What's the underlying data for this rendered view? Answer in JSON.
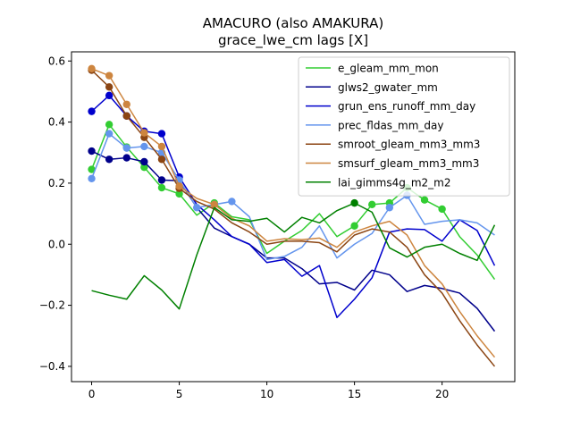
{
  "chart_data": {
    "type": "line",
    "title": "AMACURO (also AMAKURA)",
    "subtitle": "grace_lwe_cm lags [X]",
    "xlabel": "",
    "ylabel": "",
    "xlim": [
      -1.15,
      24.15
    ],
    "ylim": [
      -0.45,
      0.63
    ],
    "xticks": [
      0,
      5,
      10,
      15,
      20
    ],
    "yticks": [
      -0.4,
      -0.2,
      0.0,
      0.2,
      0.4,
      0.6
    ],
    "ytick_labels": [
      "−0.4",
      "−0.2",
      "0.0",
      "0.2",
      "0.4",
      "0.6"
    ],
    "grid": false,
    "legend_position": "top-right",
    "x": [
      0,
      1,
      2,
      3,
      4,
      5,
      6,
      7,
      8,
      9,
      10,
      11,
      12,
      13,
      14,
      15,
      16,
      17,
      18,
      19,
      20,
      21,
      22,
      23
    ],
    "series": [
      {
        "name": "e_gleam_mm_mon",
        "color": "#32cd32",
        "values": [
          0.245,
          0.392,
          0.318,
          0.252,
          0.185,
          0.165,
          0.095,
          0.135,
          0.09,
          0.08,
          -0.03,
          0.01,
          0.045,
          0.1,
          0.025,
          0.06,
          0.13,
          0.135,
          0.185,
          0.145,
          0.115,
          0.025,
          -0.035,
          -0.115
        ],
        "markers": [
          0,
          1,
          2,
          3,
          4,
          5,
          7,
          15,
          16,
          17,
          18,
          19,
          20
        ]
      },
      {
        "name": "glws2_gwater_mm",
        "color": "#00008b",
        "values": [
          0.305,
          0.278,
          0.283,
          0.27,
          0.21,
          0.208,
          0.12,
          0.053,
          0.025,
          0.0,
          -0.045,
          -0.045,
          -0.08,
          -0.13,
          -0.125,
          -0.15,
          -0.085,
          -0.1,
          -0.155,
          -0.135,
          -0.145,
          -0.16,
          -0.21,
          -0.285
        ],
        "markers": [
          0,
          1,
          2,
          3,
          4
        ]
      },
      {
        "name": "grun_ens_runoff_mm_day",
        "color": "#0000cd",
        "values": [
          0.435,
          0.487,
          0.42,
          0.37,
          0.362,
          0.22,
          0.13,
          0.08,
          0.025,
          0.0,
          -0.06,
          -0.05,
          -0.105,
          -0.07,
          -0.24,
          -0.18,
          -0.11,
          0.04,
          0.05,
          0.048,
          0.01,
          0.08,
          0.045,
          -0.07
        ],
        "markers": [
          0,
          1,
          2,
          3,
          4,
          5
        ]
      },
      {
        "name": "prec_fldas_mm_day",
        "color": "#6495ed",
        "values": [
          0.215,
          0.362,
          0.315,
          0.32,
          0.3,
          0.21,
          0.12,
          0.13,
          0.14,
          0.09,
          -0.05,
          -0.04,
          -0.01,
          0.06,
          -0.045,
          0.0,
          0.035,
          0.12,
          0.16,
          0.065,
          0.075,
          0.08,
          0.07,
          0.03
        ],
        "markers": [
          0,
          1,
          2,
          3,
          4,
          5,
          6,
          7,
          8,
          17,
          18
        ]
      },
      {
        "name": "smroot_gleam_mm3_mm3",
        "color": "#8b4513",
        "values": [
          0.57,
          0.515,
          0.42,
          0.35,
          0.278,
          0.183,
          0.14,
          0.115,
          0.07,
          0.04,
          0.0,
          0.01,
          0.01,
          0.005,
          -0.025,
          0.03,
          0.05,
          0.04,
          -0.01,
          -0.1,
          -0.16,
          -0.25,
          -0.33,
          -0.4
        ],
        "markers": [
          0,
          1,
          2,
          3,
          4,
          5
        ]
      },
      {
        "name": "smsurf_gleam_mm3_mm3",
        "color": "#cd853f",
        "values": [
          0.575,
          0.552,
          0.458,
          0.365,
          0.32,
          0.19,
          0.15,
          0.13,
          0.085,
          0.06,
          0.01,
          0.018,
          0.015,
          0.02,
          -0.01,
          0.04,
          0.06,
          0.075,
          0.03,
          -0.07,
          -0.13,
          -0.22,
          -0.3,
          -0.37
        ],
        "markers": [
          0,
          1,
          2,
          3,
          4,
          5,
          7
        ]
      },
      {
        "name": "lai_gimms4g_m2_m2",
        "color": "#008000",
        "values": [
          -0.152,
          -0.167,
          -0.18,
          -0.103,
          -0.15,
          -0.212,
          -0.035,
          0.12,
          0.08,
          0.075,
          0.085,
          0.04,
          0.088,
          0.07,
          0.11,
          0.135,
          0.105,
          -0.012,
          -0.042,
          -0.01,
          0.0,
          -0.03,
          -0.053,
          0.063
        ],
        "markers": [
          15
        ]
      }
    ]
  }
}
